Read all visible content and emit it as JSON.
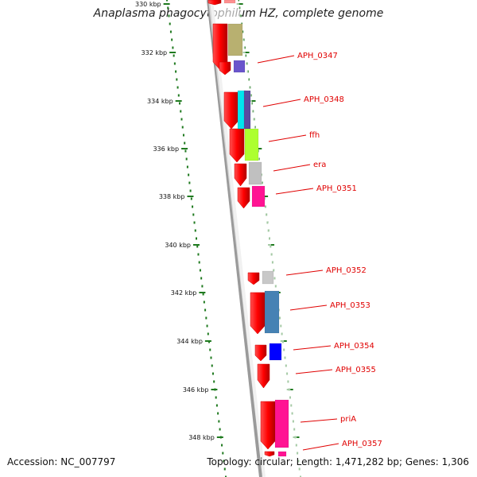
{
  "title": "Anaplasma phagocytophilum HZ, complete genome",
  "footer": {
    "accession": "Accession: NC_007797",
    "topology": "Topology: circular; Length: 1,471,282 bp; Genes: 1,306"
  },
  "colors": {
    "backbone": "#9a9a9a",
    "tick": "#1f7a1f",
    "cds_forward": "#ff0000",
    "label": "#e00000"
  },
  "ticks": [
    {
      "label": "330 kbp"
    },
    {
      "label": "332 kbp"
    },
    {
      "label": "334 kbp"
    },
    {
      "label": "336 kbp"
    },
    {
      "label": "338 kbp"
    },
    {
      "label": "340 kbp"
    },
    {
      "label": "342 kbp"
    },
    {
      "label": "344 kbp"
    },
    {
      "label": "346 kbp"
    },
    {
      "label": "348 kbp"
    }
  ],
  "gene_labels": [
    {
      "name": "APH_0347"
    },
    {
      "name": "APH_0348"
    },
    {
      "name": "ffh"
    },
    {
      "name": "era"
    },
    {
      "name": "APH_0351"
    },
    {
      "name": "APH_0352"
    },
    {
      "name": "APH_0353"
    },
    {
      "name": "APH_0354"
    },
    {
      "name": "APH_0355"
    },
    {
      "name": "priA"
    },
    {
      "name": "APH_0357"
    }
  ],
  "cog_colors": [
    "#b8b070",
    "#6a55cc",
    "#00e5ee",
    "#5a4aa0",
    "#adff2f",
    "#c0c0c0",
    "#ff1493",
    "#c8c8c8",
    "#4682b4",
    "#0000ff",
    "#ff1493"
  ]
}
